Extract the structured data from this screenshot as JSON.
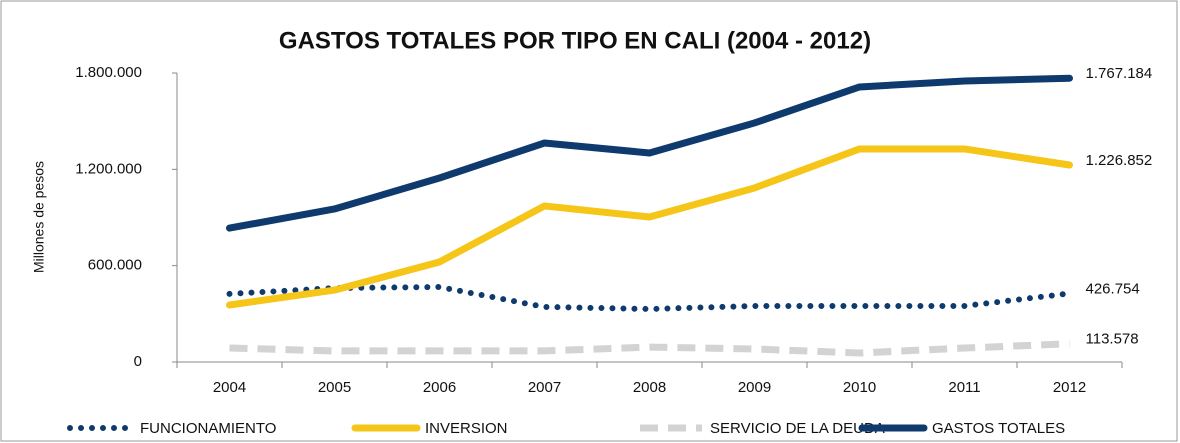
{
  "chart_data": {
    "type": "line",
    "title": "GASTOS TOTALES POR TIPO EN CALI (2004 - 2012)",
    "y_label": "Millones de pesos",
    "categories": [
      "2004",
      "2005",
      "2006",
      "2007",
      "2008",
      "2009",
      "2010",
      "2011",
      "2012"
    ],
    "series": [
      {
        "name": "FUNCIONAMIENTO",
        "color": "#0e3a6e",
        "style": "dotted",
        "values": [
          424000,
          461000,
          467000,
          343000,
          330000,
          349000,
          349000,
          349000,
          426754
        ],
        "value_labels": [
          null,
          null,
          null,
          null,
          null,
          null,
          null,
          null,
          "426.754"
        ]
      },
      {
        "name": "INVERSION",
        "color": "#f5c518",
        "style": "solid",
        "values": [
          355000,
          448000,
          623000,
          972000,
          903000,
          1084000,
          1327000,
          1327000,
          1226852
        ],
        "value_labels": [
          null,
          null,
          null,
          null,
          null,
          null,
          null,
          null,
          "1.226.852"
        ]
      },
      {
        "name": "SERVICIO DE LA DEUDA",
        "color": "#d3d3d3",
        "style": "dashed",
        "values": [
          87000,
          69000,
          69000,
          69000,
          93000,
          81000,
          56000,
          87000,
          113578
        ],
        "value_labels": [
          null,
          null,
          null,
          null,
          null,
          null,
          null,
          null,
          "113.578"
        ]
      },
      {
        "name": "GASTOS TOTALES",
        "color": "#0e3a6e",
        "style": "solid",
        "values": [
          834000,
          953000,
          1146000,
          1364000,
          1302000,
          1489000,
          1713000,
          1750000,
          1767184
        ],
        "value_labels": [
          null,
          null,
          null,
          null,
          null,
          null,
          null,
          null,
          "1.767.184"
        ]
      }
    ],
    "ylim": [
      0,
      1800000
    ],
    "yticks": [
      0,
      {
        "value": 600000,
        "label": "600.000"
      },
      {
        "value": 1200000,
        "label": "1.200.000"
      },
      {
        "value": 1800000,
        "label": "1.800.000"
      }
    ],
    "grid": false,
    "legend": "bottom"
  }
}
